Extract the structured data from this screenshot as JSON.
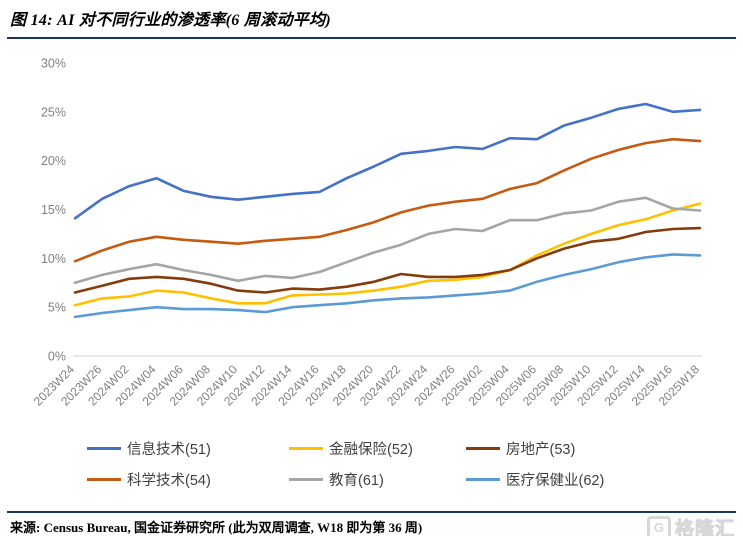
{
  "figure": {
    "title": "图 14: AI 对不同行业的渗透率(6 周滚动平均)",
    "source_note": "来源: Census Bureau, 国金证券研究所 (此为双周调查, W18 即为第 36 周)",
    "watermark_letter": "G",
    "watermark_text": "格隆汇"
  },
  "colors": {
    "rule_navy": "#17375E",
    "axis_text": "#808080",
    "axis_line": "#d9d9d9",
    "legend_text": "#404040"
  },
  "chart_data": {
    "type": "line",
    "title": "AI 对不同行业的渗透率(6 周滚动平均)",
    "xlabel": "",
    "ylabel": "",
    "ylim": [
      0,
      30
    ],
    "grid": false,
    "legend_position": "bottom",
    "yticks": [
      "0%",
      "5%",
      "10%",
      "15%",
      "20%",
      "25%",
      "30%"
    ],
    "categories": [
      "2023W24",
      "2023W26",
      "2024W02",
      "2024W04",
      "2024W06",
      "2024W08",
      "2024W10",
      "2024W12",
      "2024W14",
      "2024W16",
      "2024W18",
      "2024W20",
      "2024W22",
      "2024W24",
      "2024W26",
      "2025W02",
      "2025W04",
      "2025W06",
      "2025W08",
      "2025W10",
      "2025W12",
      "2025W14",
      "2025W16",
      "2025W18"
    ],
    "series": [
      {
        "name": "信息技术(51)",
        "color": "#4472C4",
        "values": [
          14.1,
          16.1,
          17.4,
          18.2,
          16.9,
          16.3,
          16.0,
          16.3,
          16.6,
          16.8,
          18.2,
          19.4,
          20.7,
          21.0,
          21.4,
          21.2,
          22.3,
          22.2,
          23.6,
          24.4,
          25.3,
          25.8,
          25.0,
          25.2
        ]
      },
      {
        "name": "金融保险(52)",
        "color": "#FFC000",
        "values": [
          5.2,
          5.9,
          6.1,
          6.7,
          6.5,
          5.9,
          5.4,
          5.4,
          6.2,
          6.3,
          6.4,
          6.7,
          7.1,
          7.7,
          7.8,
          8.1,
          8.8,
          10.3,
          11.5,
          12.5,
          13.4,
          14.0,
          14.9,
          15.6
        ]
      },
      {
        "name": "房地产(53)",
        "color": "#843C0C",
        "values": [
          6.5,
          7.2,
          7.9,
          8.1,
          7.9,
          7.4,
          6.7,
          6.5,
          6.9,
          6.8,
          7.1,
          7.6,
          8.4,
          8.1,
          8.1,
          8.3,
          8.8,
          10.0,
          11.0,
          11.7,
          12.0,
          12.7,
          13.0,
          13.1
        ]
      },
      {
        "name": "科学技术(54)",
        "color": "#C55A11",
        "values": [
          9.7,
          10.8,
          11.7,
          12.2,
          11.9,
          11.7,
          11.5,
          11.8,
          12.0,
          12.2,
          12.9,
          13.7,
          14.7,
          15.4,
          15.8,
          16.1,
          17.1,
          17.7,
          19.0,
          20.2,
          21.1,
          21.8,
          22.2,
          22.0
        ]
      },
      {
        "name": "教育(61)",
        "color": "#A5A5A5",
        "values": [
          7.5,
          8.3,
          8.9,
          9.4,
          8.8,
          8.3,
          7.7,
          8.2,
          8.0,
          8.6,
          9.6,
          10.6,
          11.4,
          12.5,
          13.0,
          12.8,
          13.9,
          13.9,
          14.6,
          14.9,
          15.8,
          16.2,
          15.1,
          14.9
        ]
      },
      {
        "name": "医疗保健业(62)",
        "color": "#5B9BD5",
        "values": [
          4.0,
          4.4,
          4.7,
          5.0,
          4.8,
          4.8,
          4.7,
          4.5,
          5.0,
          5.2,
          5.4,
          5.7,
          5.9,
          6.0,
          6.2,
          6.4,
          6.7,
          7.6,
          8.3,
          8.9,
          9.6,
          10.1,
          10.4,
          10.3
        ]
      }
    ],
    "legend_rows": [
      [
        "信息技术(51)",
        "金融保险(52)",
        "房地产(53)"
      ],
      [
        "科学技术(54)",
        "教育(61)",
        "医疗保健业(62)"
      ]
    ]
  }
}
